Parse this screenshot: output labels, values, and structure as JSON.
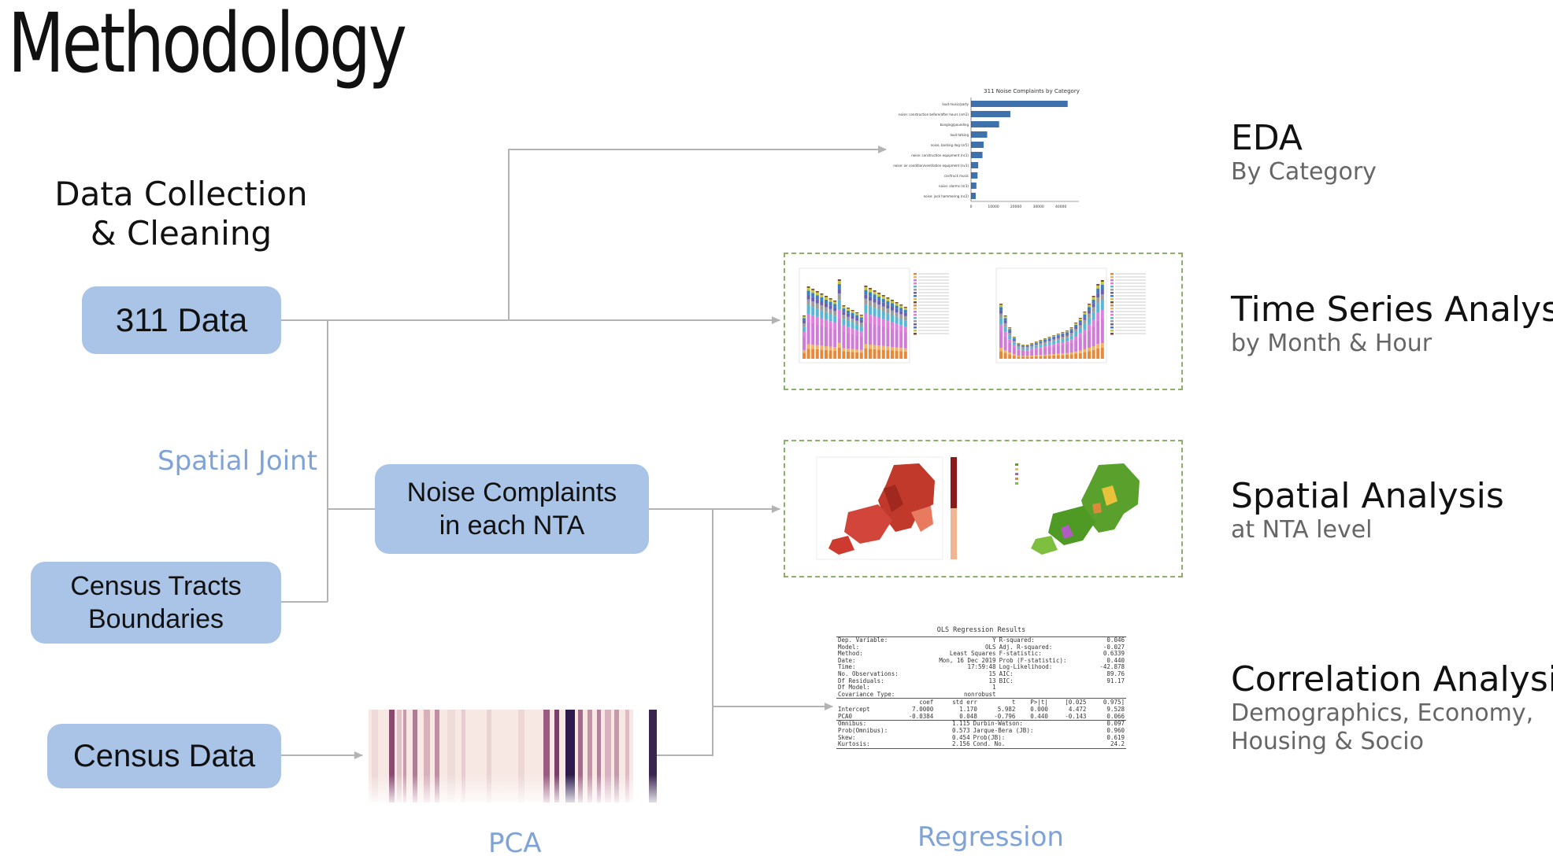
{
  "title": "Methodology",
  "data_collection": {
    "line1": "Data Collection",
    "line2": "& Cleaning"
  },
  "boxes": {
    "data311": "311 Data",
    "census_tracts": {
      "line1": "Census Tracts",
      "line2": "Boundaries"
    },
    "census_data": "Census Data",
    "noise_nta": {
      "line1": "Noise Complaints",
      "line2": "in each NTA"
    }
  },
  "labels": {
    "spatial_joint": "Spatial Joint",
    "pca": "PCA",
    "regression": "Regression"
  },
  "outputs": [
    {
      "title": "EDA",
      "subtitle": [
        "By Category"
      ]
    },
    {
      "title": "Time Series Analysis",
      "subtitle": [
        "by Month & Hour"
      ]
    },
    {
      "title": "Spatial Analysis",
      "subtitle": [
        "at NTA level"
      ]
    },
    {
      "title": "Correlation Analysis",
      "subtitle": [
        "Demographics, Economy,",
        "Housing & Socio"
      ]
    }
  ],
  "colors": {
    "box": "#a9c4e6",
    "blue_label": "#7fa3d6",
    "bar": "#3f72ad",
    "dash": "#8ab06a",
    "connector": "#b3b3b3"
  },
  "eda_chart": {
    "title": "311 Noise Complaints by Category",
    "categories": [
      "loud music/party",
      "noise: construction before/after hours (nm1)",
      "banging/pounding",
      "loud talking",
      "noise, barking dog (nr5)",
      "noise: construction equipment (nc1)",
      "noise: air condition/ventilation equipment (nv1)",
      "car/truck music",
      "noise: alarms (nr3)",
      "noise: jack hammering (nc2)"
    ],
    "values": [
      43000,
      17500,
      12500,
      7200,
      5600,
      5100,
      3200,
      2900,
      2400,
      2100
    ],
    "ticks": [
      "0",
      "10000",
      "20000",
      "30000",
      "40000"
    ]
  },
  "regression_table": {
    "title": "OLS Regression Results",
    "rows": [
      [
        "Dep. Variable:",
        "Y",
        "R-squared:",
        "0.046"
      ],
      [
        "Model:",
        "OLS",
        "Adj. R-squared:",
        "-0.027"
      ],
      [
        "Method:",
        "Least Squares",
        "F-statistic:",
        "0.6339"
      ],
      [
        "Date:",
        "Mon, 16 Dec 2019",
        "Prob (F-statistic):",
        "0.440"
      ],
      [
        "Time:",
        "17:59:48",
        "Log-Likelihood:",
        "-42.878"
      ],
      [
        "No. Observations:",
        "15",
        "AIC:",
        "89.76"
      ],
      [
        "Df Residuals:",
        "13",
        "BIC:",
        "91.17"
      ],
      [
        "Df Model:",
        "1",
        "",
        ""
      ],
      [
        "Covariance Type:",
        "nonrobust",
        "",
        ""
      ]
    ],
    "coef_header": [
      "coef",
      "std err",
      "t",
      "P>|t|",
      "[0.025",
      "0.975]"
    ],
    "coef_rows": [
      [
        "Intercept",
        "7.0000",
        "1.170",
        "5.982",
        "0.000",
        "4.472",
        "9.528"
      ],
      [
        "PCA0",
        "-0.0384",
        "0.048",
        "-0.796",
        "0.440",
        "-0.143",
        "0.066"
      ]
    ],
    "diag_rows": [
      [
        "Omnibus:",
        "1.115",
        "Durbin-Watson:",
        "0.097"
      ],
      [
        "Prob(Omnibus):",
        "0.573",
        "Jarque-Bera (JB):",
        "0.960"
      ],
      [
        "Skew:",
        "0.454",
        "Prob(JB):",
        "0.619"
      ],
      [
        "Kurtosis:",
        "2.156",
        "Cond. No.",
        "24.2"
      ]
    ]
  }
}
